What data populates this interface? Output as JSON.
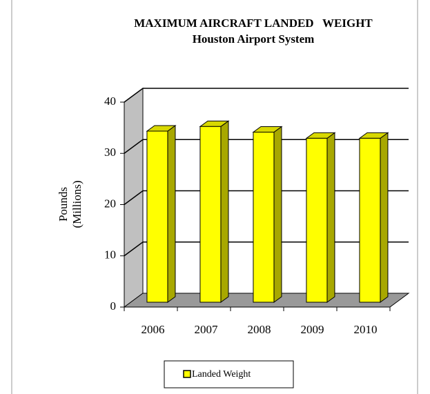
{
  "chart_data": {
    "type": "bar3d",
    "title": "MAXIMUM AIRCRAFT LANDED   WEIGHT",
    "subtitle": "Houston Airport System",
    "y_label_lines": [
      "Pounds",
      "(Millions)"
    ],
    "categories": [
      "2006",
      "2007",
      "2008",
      "2009",
      "2010"
    ],
    "series": [
      {
        "name": "Landed Weight",
        "color": "#ffff00",
        "values": [
          33.4,
          34.3,
          33.2,
          32,
          32
        ]
      }
    ],
    "ylim": [
      0,
      40
    ],
    "yticks": [
      0,
      10,
      20,
      30,
      40
    ],
    "grid": true,
    "legend": "bottom"
  }
}
